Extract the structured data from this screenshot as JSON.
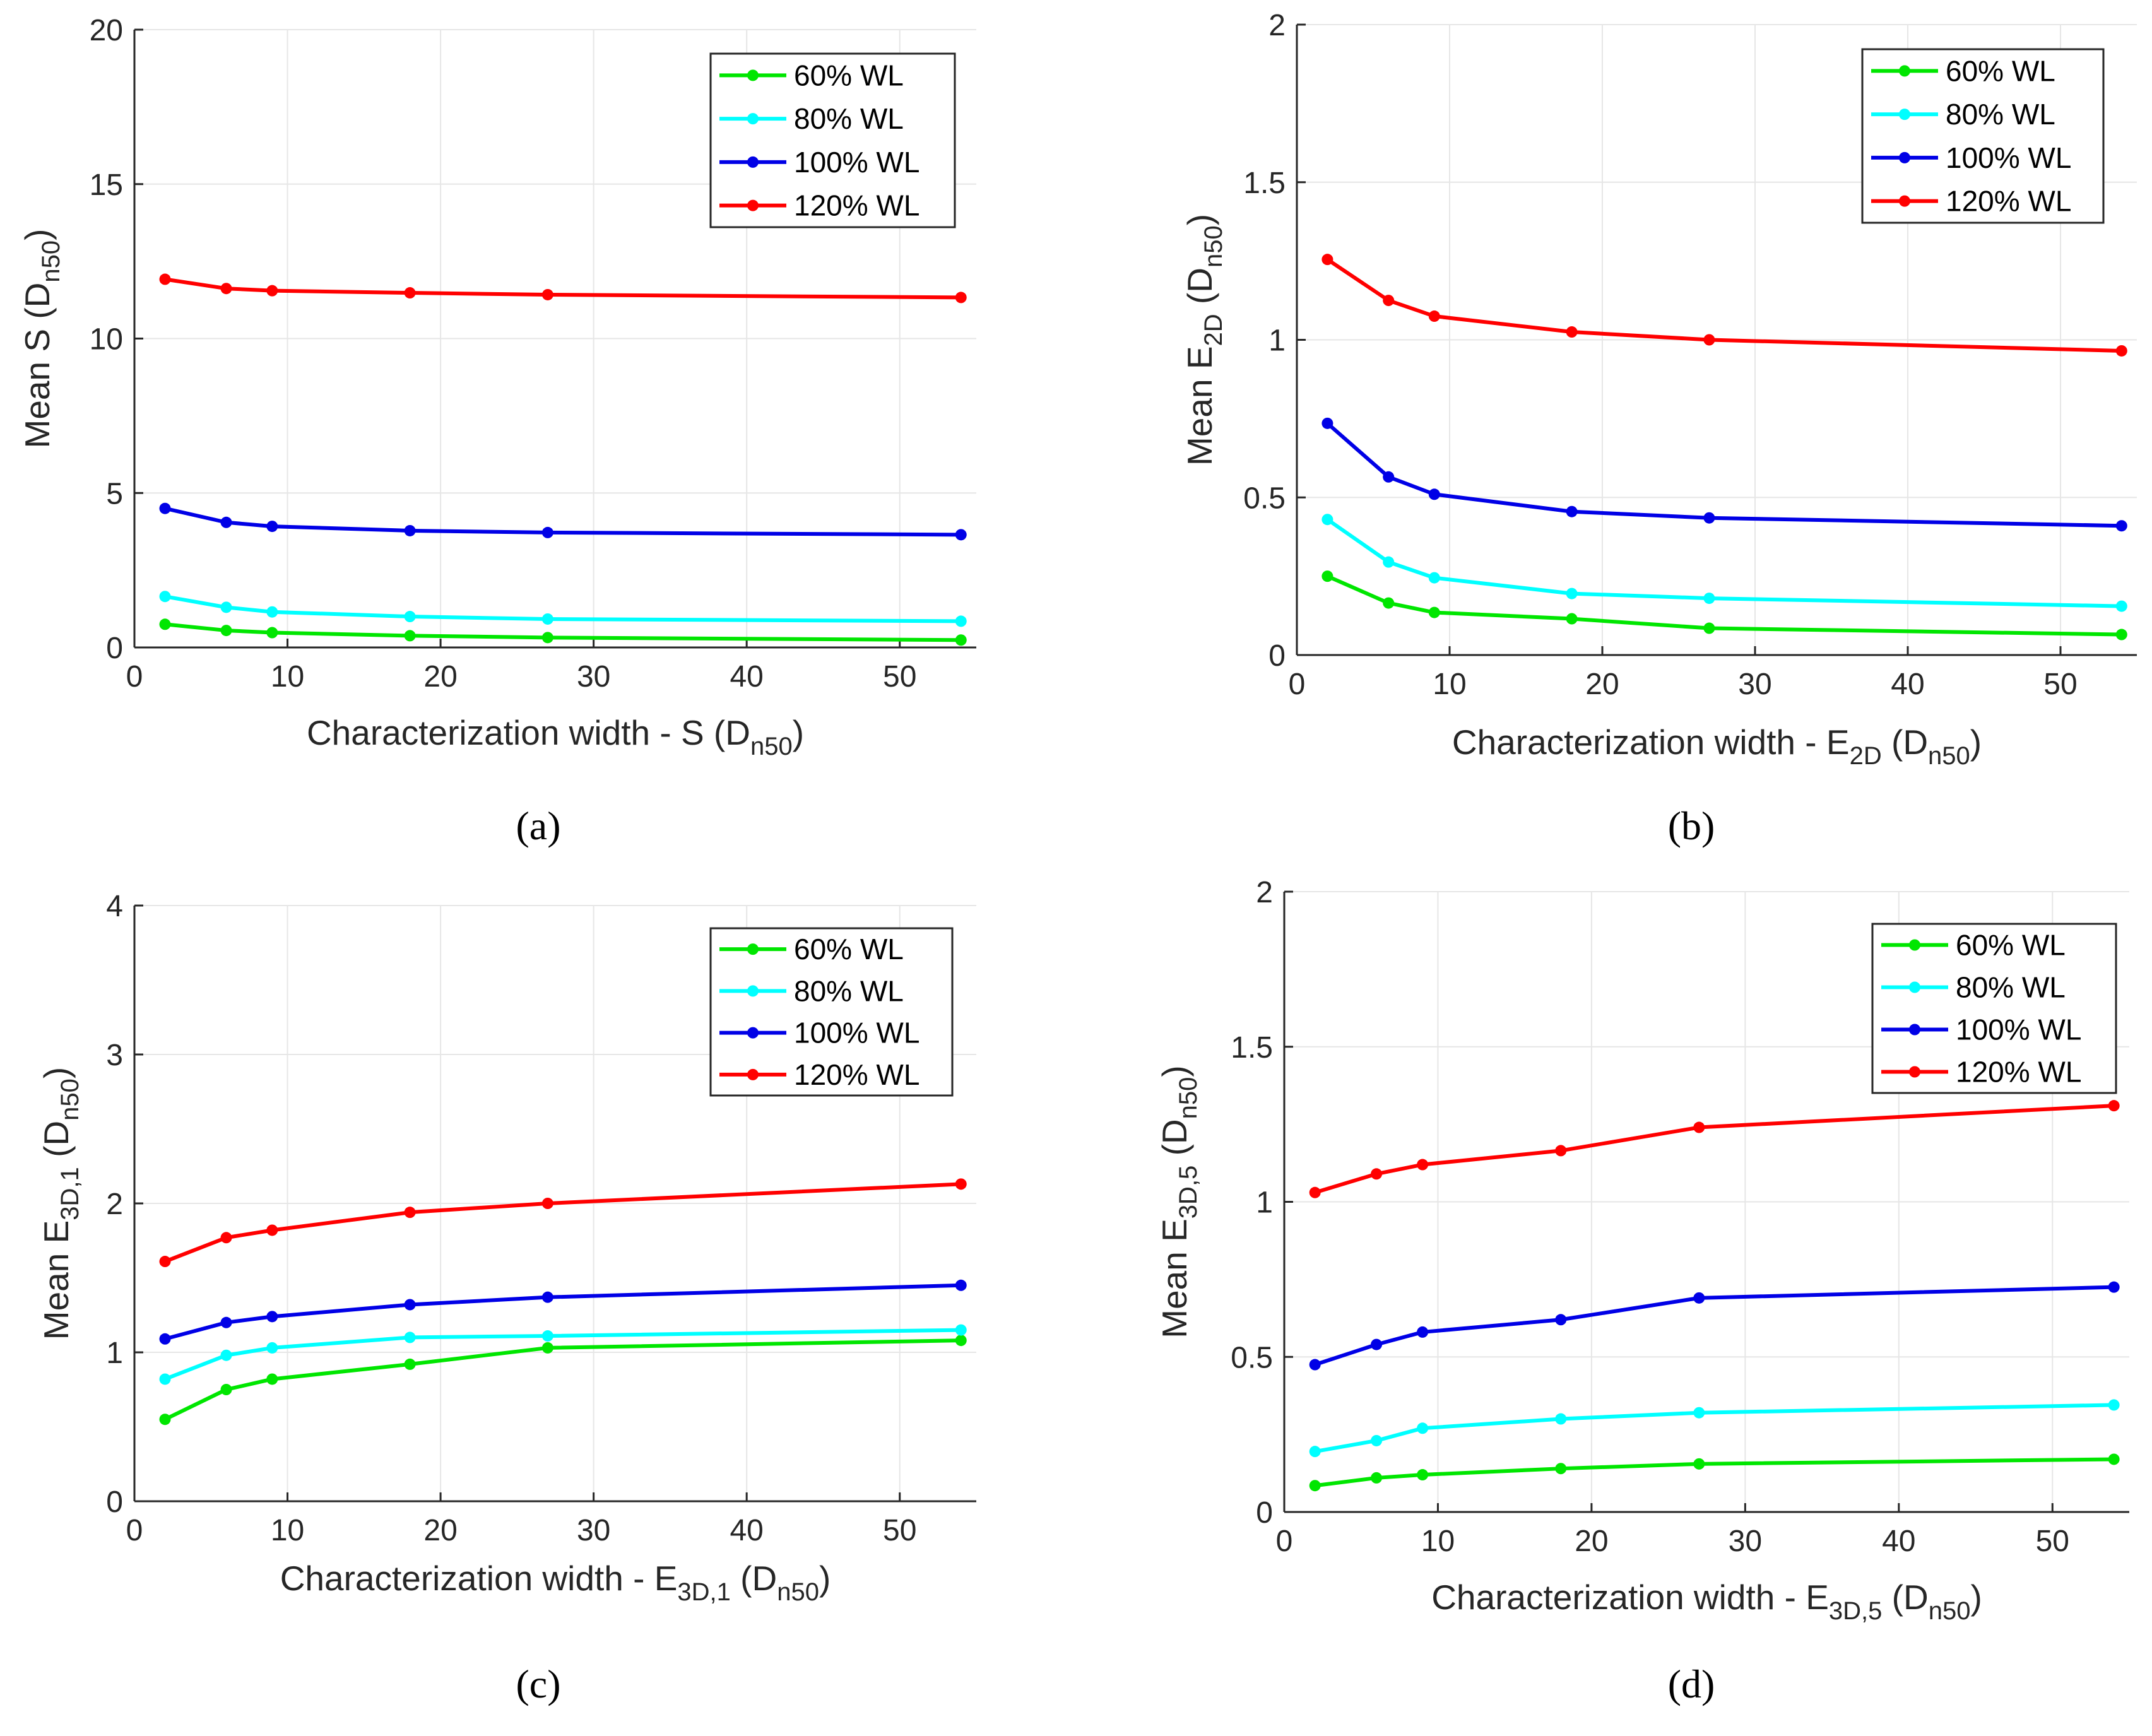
{
  "chart_data": [
    {
      "type": "line",
      "caption": "(a)",
      "xlabel": {
        "main": "Characterization width - S (D",
        "sub": "n50",
        "tail": ")"
      },
      "ylabel": {
        "main": "Mean S (D",
        "sub": "n50",
        "tail": ")"
      },
      "xlim": [
        0,
        55
      ],
      "ylim": [
        0,
        20
      ],
      "xticks": [
        0,
        10,
        20,
        30,
        40,
        50
      ],
      "yticks": [
        0,
        5,
        10,
        15,
        20
      ],
      "grid": true,
      "legend_position": "top-right",
      "x": [
        2,
        6,
        9,
        18,
        27,
        54
      ],
      "series": [
        {
          "name": "60% WL",
          "color": "#00e600",
          "values": [
            0.75,
            0.55,
            0.48,
            0.38,
            0.32,
            0.24
          ]
        },
        {
          "name": "80% WL",
          "color": "#00ffff",
          "values": [
            1.65,
            1.3,
            1.15,
            1.0,
            0.92,
            0.85
          ]
        },
        {
          "name": "100% WL",
          "color": "#0000e6",
          "values": [
            4.5,
            4.05,
            3.92,
            3.78,
            3.72,
            3.65
          ]
        },
        {
          "name": "120% WL",
          "color": "#ff0000",
          "values": [
            11.92,
            11.62,
            11.55,
            11.48,
            11.42,
            11.33
          ]
        }
      ]
    },
    {
      "type": "line",
      "caption": "(b)",
      "xlabel": {
        "main": "Characterization width - E",
        "mainsub": "2D",
        "main2": " (D",
        "sub": "n50",
        "tail": ")"
      },
      "ylabel": {
        "main": "Mean E",
        "mainsub": "2D",
        "main2": " (D",
        "sub": "n50",
        "tail": ")"
      },
      "xlim": [
        0,
        55
      ],
      "ylim": [
        0,
        2
      ],
      "xticks": [
        0,
        10,
        20,
        30,
        40,
        50
      ],
      "yticks": [
        0,
        0.5,
        1,
        1.5,
        2
      ],
      "grid": true,
      "legend_position": "top-right",
      "x": [
        2,
        6,
        9,
        18,
        27,
        54
      ],
      "series": [
        {
          "name": "60% WL",
          "color": "#00e600",
          "values": [
            0.25,
            0.165,
            0.135,
            0.115,
            0.085,
            0.065
          ]
        },
        {
          "name": "80% WL",
          "color": "#00ffff",
          "values": [
            0.43,
            0.295,
            0.245,
            0.195,
            0.18,
            0.155
          ]
        },
        {
          "name": "100% WL",
          "color": "#0000e6",
          "values": [
            0.735,
            0.565,
            0.51,
            0.455,
            0.435,
            0.41
          ]
        },
        {
          "name": "120% WL",
          "color": "#ff0000",
          "values": [
            1.255,
            1.125,
            1.075,
            1.025,
            1.0,
            0.965
          ]
        }
      ]
    },
    {
      "type": "line",
      "caption": "(c)",
      "xlabel": {
        "main": "Characterization width - E",
        "mainsub": "3D,1",
        "main2": " (D",
        "sub": "n50",
        "tail": ")"
      },
      "ylabel": {
        "main": "Mean E",
        "mainsub": "3D,1",
        "main2": " (D",
        "sub": "n50",
        "tail": ")"
      },
      "xlim": [
        0,
        55
      ],
      "ylim": [
        0,
        4
      ],
      "xticks": [
        0,
        10,
        20,
        30,
        40,
        50
      ],
      "yticks": [
        0,
        1,
        2,
        3,
        4
      ],
      "grid": true,
      "legend_position": "top-right",
      "x": [
        2,
        6,
        9,
        18,
        27,
        54
      ],
      "series": [
        {
          "name": "60% WL",
          "color": "#00e600",
          "values": [
            0.55,
            0.75,
            0.82,
            0.92,
            1.03,
            1.08
          ]
        },
        {
          "name": "80% WL",
          "color": "#00ffff",
          "values": [
            0.82,
            0.98,
            1.03,
            1.1,
            1.11,
            1.15
          ]
        },
        {
          "name": "100% WL",
          "color": "#0000e6",
          "values": [
            1.09,
            1.2,
            1.24,
            1.32,
            1.37,
            1.45
          ]
        },
        {
          "name": "120% WL",
          "color": "#ff0000",
          "values": [
            1.61,
            1.77,
            1.82,
            1.94,
            2.0,
            2.13
          ]
        }
      ]
    },
    {
      "type": "line",
      "caption": "(d)",
      "xlabel": {
        "main": "Characterization width - E",
        "mainsub": "3D,5",
        "main2": " (D",
        "sub": "n50",
        "tail": ")"
      },
      "ylabel": {
        "main": "Mean E",
        "mainsub": "3D,5",
        "main2": " (D",
        "sub": "n50",
        "tail": ")"
      },
      "xlim": [
        0,
        55
      ],
      "ylim": [
        0,
        2
      ],
      "xticks": [
        0,
        10,
        20,
        30,
        40,
        50
      ],
      "yticks": [
        0,
        0.5,
        1,
        1.5,
        2
      ],
      "grid": true,
      "legend_position": "top-right",
      "x": [
        2,
        6,
        9,
        18,
        27,
        54
      ],
      "series": [
        {
          "name": "60% WL",
          "color": "#00e600",
          "values": [
            0.085,
            0.11,
            0.12,
            0.14,
            0.155,
            0.17
          ]
        },
        {
          "name": "80% WL",
          "color": "#00ffff",
          "values": [
            0.195,
            0.23,
            0.27,
            0.3,
            0.32,
            0.345
          ]
        },
        {
          "name": "100% WL",
          "color": "#0000e6",
          "values": [
            0.475,
            0.54,
            0.58,
            0.62,
            0.69,
            0.725
          ]
        },
        {
          "name": "120% WL",
          "color": "#ff0000",
          "values": [
            1.03,
            1.09,
            1.12,
            1.165,
            1.24,
            1.31
          ]
        }
      ]
    }
  ]
}
